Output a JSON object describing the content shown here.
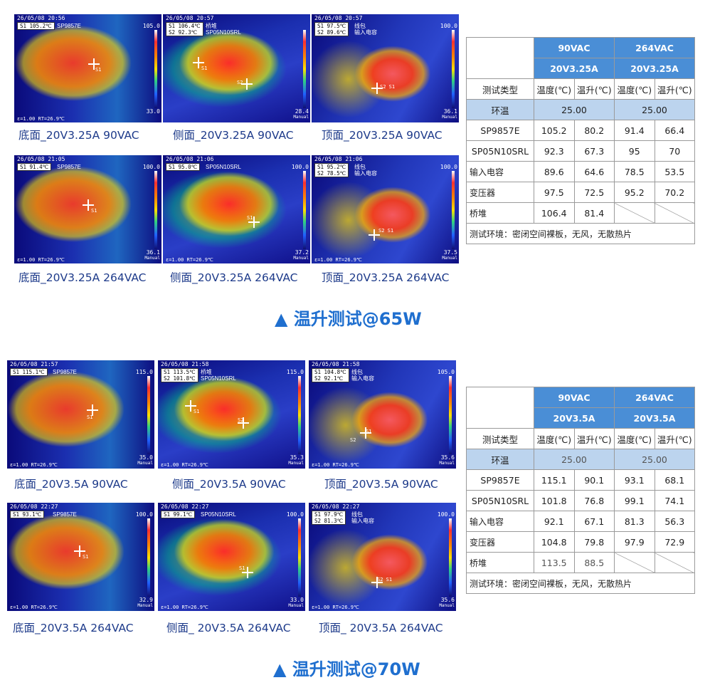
{
  "sections": [
    {
      "title": "▲ 温升测试@65W",
      "images": [
        {
          "timestamp": "26/05/08 20:56",
          "readout": [
            "S1 105.2℃"
          ],
          "tag": "SP9857E",
          "scale_max": "105.0",
          "scale_min": "33.0",
          "manual": "",
          "footer": "ε=1.00 RT=26.9℃",
          "caption": "底面_20V3.25A 90VAC",
          "style": "bottom"
        },
        {
          "timestamp": "26/05/08 20:57",
          "readout": [
            "S1 106.4℃",
            "S2  92.3℃"
          ],
          "tag": "桥堆\nSP05N10SRL",
          "scale_max": "",
          "scale_min": "28.4",
          "manual": "Manual",
          "footer": "",
          "caption": "侧面_20V3.25A 90VAC",
          "style": "side"
        },
        {
          "timestamp": "26/05/08 20:57",
          "readout": [
            "S1  97.5℃",
            "S2  89.6℃"
          ],
          "tag": "线包\n输入电容",
          "scale_max": "100.0",
          "scale_min": "36.1",
          "manual": "Manual",
          "footer": "",
          "caption": "顶面_20V3.25A 90VAC",
          "style": "top"
        },
        {
          "timestamp": "26/05/08 21:05",
          "readout": [
            "S1  91.4℃"
          ],
          "tag": "SP9857E",
          "scale_max": "100.0",
          "scale_min": "36.1",
          "manual": "Manual",
          "footer": "ε=1.00 RT=26.9℃",
          "caption": "底面_20V3.25A 264VAC",
          "style": "bottom"
        },
        {
          "timestamp": "26/05/08 21:06",
          "readout": [
            "S1  95.0℃"
          ],
          "tag": "SP05N10SRL",
          "scale_max": "100.0",
          "scale_min": "37.2",
          "manual": "Manual",
          "footer": "ε=1.00 RT=26.9℃",
          "caption": "侧面_20V3.25A 264VAC",
          "style": "side"
        },
        {
          "timestamp": "26/05/08 21:06",
          "readout": [
            "S1  95.2℃",
            "S2  78.5℃"
          ],
          "tag": "线包\n输入电容",
          "scale_max": "100.0",
          "scale_min": "37.5",
          "manual": "Manual",
          "footer": "ε=1.00 RT=26.9℃",
          "caption": "顶面_20V3.25A 264VAC",
          "style": "top"
        }
      ],
      "table": {
        "h1": [
          "90VAC",
          "264VAC"
        ],
        "h2": [
          "20V3.25A",
          "20V3.25A"
        ],
        "h3": [
          "测试类型",
          "温度(℃)",
          "温升(℃)",
          "温度(℃)",
          "温升(℃)"
        ],
        "ambient": [
          "环温",
          "25.00",
          "25.00"
        ],
        "rows": [
          [
            "SP9857E",
            "105.2",
            "80.2",
            "91.4",
            "66.4"
          ],
          [
            "SP05N10SRL",
            "92.3",
            "67.3",
            "95",
            "70"
          ],
          [
            "输入电容",
            "89.6",
            "64.6",
            "78.5",
            "53.5"
          ],
          [
            "变压器",
            "97.5",
            "72.5",
            "95.2",
            "70.2"
          ],
          [
            "桥堆",
            "106.4",
            "81.4",
            "",
            ""
          ]
        ],
        "note": "测试环境：密闭空间裸板，无风，无散热片"
      }
    },
    {
      "title": "▲ 温升测试@70W",
      "images": [
        {
          "timestamp": "26/05/08 21:57",
          "readout": [
            "S1 115.1℃"
          ],
          "tag": "SP9857E",
          "scale_max": "115.0",
          "scale_min": "35.0",
          "manual": "Manual",
          "footer": "ε=1.00 RT=26.9℃",
          "caption": "底面_20V3.5A 90VAC",
          "style": "bottom"
        },
        {
          "timestamp": "26/05/08 21:58",
          "readout": [
            "S1 113.5℃",
            "S2 101.8℃"
          ],
          "tag": "桥堆\nSP05N10SRL",
          "scale_max": "115.0",
          "scale_min": "35.3",
          "manual": "Manual",
          "footer": "ε=1.00 RT=26.9℃",
          "caption": "侧面_20V3.5A 90VAC",
          "style": "side"
        },
        {
          "timestamp": "26/05/08 21:58",
          "readout": [
            "S1 104.8℃",
            "S2  92.1℃"
          ],
          "tag": "线包\n输入电容",
          "scale_max": "105.0",
          "scale_min": "35.6",
          "manual": "Manual",
          "footer": "ε=1.00 RT=26.9℃",
          "caption": "顶面_20V3.5A 90VAC",
          "style": "top"
        },
        {
          "timestamp": "26/05/08 22:27",
          "readout": [
            "S1  93.1℃"
          ],
          "tag": "SP9857E",
          "scale_max": "100.0",
          "scale_min": "32.9",
          "manual": "Manual",
          "footer": "ε=1.00 RT=26.9℃",
          "caption": "底面_20V3.5A 264VAC",
          "style": "bottom"
        },
        {
          "timestamp": "26/05/08 22:27",
          "readout": [
            "S1  99.1℃"
          ],
          "tag": "SP05N10SRL",
          "scale_max": "100.0",
          "scale_min": "33.0",
          "manual": "Manual",
          "footer": "ε=1.00 RT=26.9℃",
          "caption": "侧面_ 20V3.5A 264VAC",
          "style": "side"
        },
        {
          "timestamp": "26/05/08 22:27",
          "readout": [
            "S1  97.9℃",
            "S2  81.3℃"
          ],
          "tag": "线包\n输入电容",
          "scale_max": "100.0",
          "scale_min": "35.6",
          "manual": "Manual",
          "footer": "ε=1.00 RT=26.9℃",
          "caption": "顶面_ 20V3.5A 264VAC",
          "style": "top"
        }
      ],
      "table": {
        "h1": [
          "90VAC",
          "264VAC"
        ],
        "h2": [
          "20V3.5A",
          "20V3.5A"
        ],
        "h3": [
          "测试类型",
          "温度(℃)",
          "温升(℃)",
          "温度(℃)",
          "温升(℃)"
        ],
        "ambient": [
          "环温",
          "25.00",
          "25.00"
        ],
        "rows": [
          [
            "SP9857E",
            "115.1",
            "90.1",
            "93.1",
            "68.1"
          ],
          [
            "SP05N10SRL",
            "101.8",
            "76.8",
            "99.1",
            "74.1"
          ],
          [
            "输入电容",
            "92.1",
            "67.1",
            "81.3",
            "56.3"
          ],
          [
            "变压器",
            "104.8",
            "79.8",
            "97.9",
            "72.9"
          ],
          [
            "桥堆",
            "113.5",
            "88.5",
            "",
            ""
          ]
        ],
        "note": "测试环境：密闭空间裸板，无风，无散热片"
      }
    }
  ]
}
